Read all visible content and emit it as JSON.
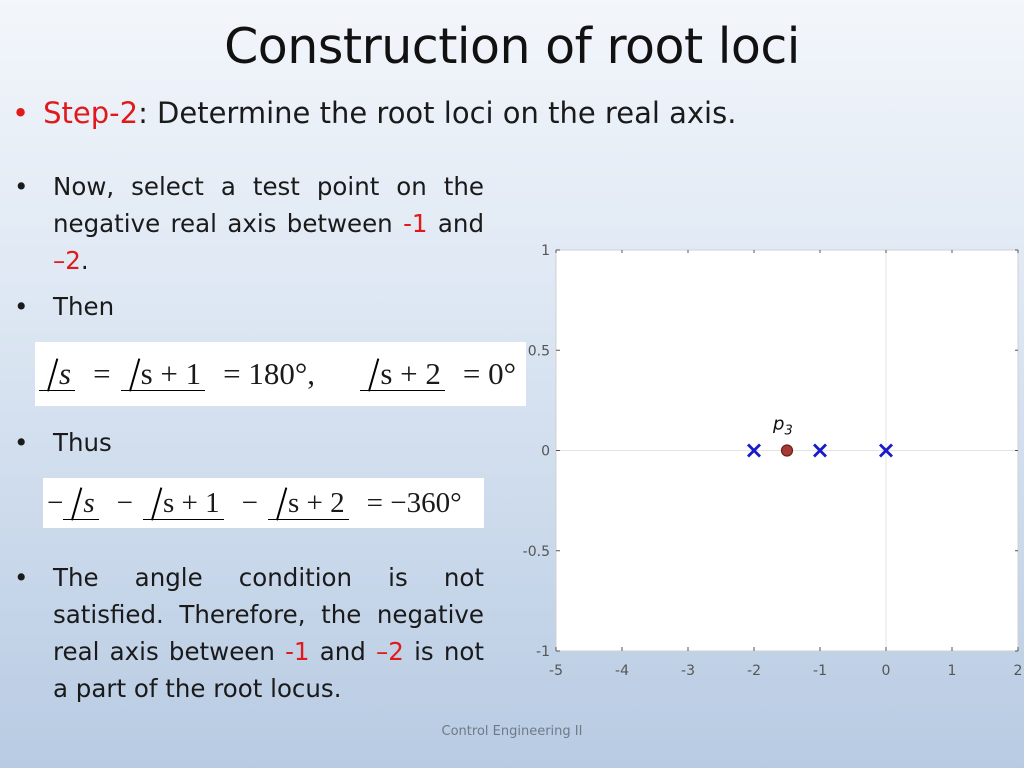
{
  "title": "Construction of root loci",
  "step": {
    "label": "Step-2",
    "text": ": Determine the root loci on the real axis."
  },
  "bullets": {
    "b1_pre": "Now, select a test point on the negative real axis between ",
    "b1_v1": "-1",
    "b1_mid": " and ",
    "b1_v2": "–2",
    "b1_end": ".",
    "b2": "Then",
    "b3": "Thus",
    "b4_pre": "The angle condition is not satisfied. Therefore, the negative real axis between ",
    "b4_v1": "-1",
    "b4_mid": " and ",
    "b4_v2": "–2",
    "b4_end": " is not a part of the root locus."
  },
  "eq1": {
    "a1": "s",
    "eq1": "=",
    "a2": "s + 1",
    "eq2": "= 180°,",
    "a3": "s + 2",
    "eq3": "= 0°"
  },
  "eq2": {
    "neg1": "−",
    "a1": "s",
    "neg2": "−",
    "a2": "s + 1",
    "neg3": "−",
    "a3": "s + 2",
    "rhs": "= −360°"
  },
  "footer": "Control Engineering II",
  "chart_data": {
    "type": "scatter",
    "xlim": [
      -5,
      2
    ],
    "ylim": [
      -1,
      1
    ],
    "xticks": [
      "-5",
      "-4",
      "-3",
      "-2",
      "-1",
      "0",
      "1",
      "2"
    ],
    "yticks": [
      "1",
      "0.5",
      "0",
      "-0.5",
      "-1"
    ],
    "grid": true,
    "poles": [
      {
        "x": -2,
        "y": 0
      },
      {
        "x": -1,
        "y": 0
      },
      {
        "x": 0,
        "y": 0
      }
    ],
    "test_point": {
      "x": -1.5,
      "y": 0,
      "label": "p",
      "sub": "3"
    },
    "colors": {
      "pole": "#1a1acd",
      "test_point": "#a83a36",
      "test_point_edge": "#6b1f1c",
      "axis": "#555555"
    }
  }
}
